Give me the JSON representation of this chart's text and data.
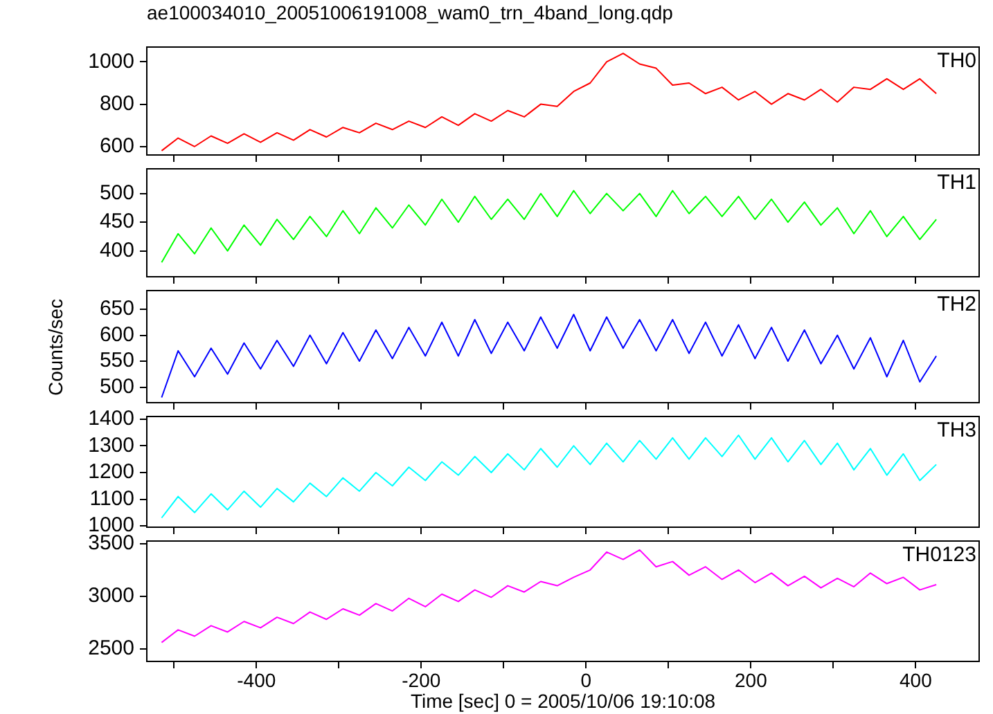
{
  "chart_data": [
    {
      "type": "line",
      "title": "ae100034010_20051006191008_wam0_trn_4band_long.qdp",
      "x": [
        -515,
        -495,
        -475,
        -455,
        -435,
        -415,
        -395,
        -375,
        -355,
        -335,
        -315,
        -295,
        -275,
        -255,
        -235,
        -215,
        -195,
        -175,
        -155,
        -135,
        -115,
        -95,
        -75,
        -55,
        -35,
        -15,
        5,
        25,
        45,
        65,
        85,
        105,
        125,
        145,
        165,
        185,
        205,
        225,
        245,
        265,
        285,
        305,
        325,
        345,
        365,
        385,
        405,
        425
      ],
      "xlim": [
        -533,
        477
      ],
      "xticks": [
        {
          "value": -500,
          "label": null
        },
        -400,
        {
          "value": -300,
          "label": null
        },
        -200,
        {
          "value": -100,
          "label": null
        },
        0,
        {
          "value": 100,
          "label": null
        },
        200,
        {
          "value": 300,
          "label": null
        },
        400
      ],
      "ylim": [
        560,
        1070
      ],
      "yticks": [
        600,
        800,
        1000
      ],
      "tick_labels": "y",
      "series": [
        {
          "name": "TH0",
          "color": "#ff0000",
          "values": [
            580,
            640,
            600,
            650,
            615,
            660,
            620,
            665,
            630,
            680,
            645,
            690,
            665,
            710,
            680,
            720,
            690,
            740,
            700,
            755,
            720,
            770,
            740,
            800,
            790,
            860,
            900,
            1000,
            1040,
            990,
            970,
            890,
            900,
            850,
            880,
            820,
            860,
            800,
            850,
            820,
            870,
            810,
            880,
            870,
            920,
            870,
            920,
            850
          ]
        }
      ]
    },
    {
      "type": "line",
      "x": [
        -515,
        -495,
        -475,
        -455,
        -435,
        -415,
        -395,
        -375,
        -355,
        -335,
        -315,
        -295,
        -275,
        -255,
        -235,
        -215,
        -195,
        -175,
        -155,
        -135,
        -115,
        -95,
        -75,
        -55,
        -35,
        -15,
        5,
        25,
        45,
        65,
        85,
        105,
        125,
        145,
        165,
        185,
        205,
        225,
        245,
        265,
        285,
        305,
        325,
        345,
        365,
        385,
        405,
        425
      ],
      "xlim": [
        -533,
        477
      ],
      "xticks": [
        {
          "value": -500,
          "label": null
        },
        -400,
        {
          "value": -300,
          "label": null
        },
        -200,
        {
          "value": -100,
          "label": null
        },
        0,
        {
          "value": 100,
          "label": null
        },
        200,
        {
          "value": 300,
          "label": null
        },
        400
      ],
      "ylim": [
        355,
        543
      ],
      "yticks": [
        400,
        450,
        500
      ],
      "tick_labels": "y",
      "series": [
        {
          "name": "TH1",
          "color": "#00ff00",
          "values": [
            380,
            430,
            395,
            440,
            400,
            445,
            410,
            455,
            420,
            460,
            425,
            470,
            430,
            475,
            440,
            480,
            445,
            490,
            450,
            495,
            455,
            490,
            455,
            500,
            460,
            505,
            465,
            500,
            470,
            500,
            460,
            505,
            465,
            495,
            460,
            495,
            455,
            490,
            450,
            485,
            445,
            475,
            430,
            470,
            425,
            460,
            420,
            455
          ]
        }
      ]
    },
    {
      "type": "line",
      "ylabel": "Counts/sec",
      "x": [
        -515,
        -495,
        -475,
        -455,
        -435,
        -415,
        -395,
        -375,
        -355,
        -335,
        -315,
        -295,
        -275,
        -255,
        -235,
        -215,
        -195,
        -175,
        -155,
        -135,
        -115,
        -95,
        -75,
        -55,
        -35,
        -15,
        5,
        25,
        45,
        65,
        85,
        105,
        125,
        145,
        165,
        185,
        205,
        225,
        245,
        265,
        285,
        305,
        325,
        345,
        365,
        385,
        405,
        425
      ],
      "xlim": [
        -533,
        477
      ],
      "xticks": [
        {
          "value": -500,
          "label": null
        },
        -400,
        {
          "value": -300,
          "label": null
        },
        -200,
        {
          "value": -100,
          "label": null
        },
        0,
        {
          "value": 100,
          "label": null
        },
        200,
        {
          "value": 300,
          "label": null
        },
        400
      ],
      "ylim": [
        470,
        686
      ],
      "yticks": [
        500,
        550,
        600,
        650
      ],
      "tick_labels": "y",
      "series": [
        {
          "name": "TH2",
          "color": "#0000ff",
          "values": [
            480,
            570,
            520,
            575,
            525,
            585,
            535,
            590,
            540,
            600,
            545,
            605,
            550,
            610,
            555,
            615,
            560,
            625,
            560,
            630,
            565,
            625,
            570,
            635,
            575,
            640,
            570,
            635,
            575,
            630,
            570,
            630,
            565,
            625,
            560,
            620,
            555,
            615,
            550,
            610,
            545,
            600,
            535,
            595,
            520,
            590,
            510,
            560
          ]
        }
      ]
    },
    {
      "type": "line",
      "x": [
        -515,
        -495,
        -475,
        -455,
        -435,
        -415,
        -395,
        -375,
        -355,
        -335,
        -315,
        -295,
        -275,
        -255,
        -235,
        -215,
        -195,
        -175,
        -155,
        -135,
        -115,
        -95,
        -75,
        -55,
        -35,
        -15,
        5,
        25,
        45,
        65,
        85,
        105,
        125,
        145,
        165,
        185,
        205,
        225,
        245,
        265,
        285,
        305,
        325,
        345,
        365,
        385,
        405,
        425
      ],
      "xlim": [
        -533,
        477
      ],
      "xticks": [
        {
          "value": -500,
          "label": null
        },
        -400,
        {
          "value": -300,
          "label": null
        },
        -200,
        {
          "value": -100,
          "label": null
        },
        0,
        {
          "value": 100,
          "label": null
        },
        200,
        {
          "value": 300,
          "label": null
        },
        400
      ],
      "ylim": [
        995,
        1410
      ],
      "yticks": [
        1000,
        1100,
        1200,
        1300,
        1400
      ],
      "tick_labels": "y",
      "series": [
        {
          "name": "TH3",
          "color": "#00ffff",
          "values": [
            1030,
            1110,
            1050,
            1120,
            1060,
            1130,
            1070,
            1140,
            1090,
            1160,
            1110,
            1180,
            1130,
            1200,
            1150,
            1220,
            1170,
            1240,
            1190,
            1260,
            1200,
            1270,
            1210,
            1290,
            1220,
            1300,
            1230,
            1310,
            1240,
            1320,
            1250,
            1330,
            1250,
            1330,
            1260,
            1340,
            1250,
            1330,
            1240,
            1320,
            1230,
            1310,
            1210,
            1290,
            1190,
            1270,
            1170,
            1230
          ]
        }
      ]
    },
    {
      "type": "line",
      "xlabel": "Time [sec] 0 = 2005/10/06 19:10:08",
      "x": [
        -515,
        -495,
        -475,
        -455,
        -435,
        -415,
        -395,
        -375,
        -355,
        -335,
        -315,
        -295,
        -275,
        -255,
        -235,
        -215,
        -195,
        -175,
        -155,
        -135,
        -115,
        -95,
        -75,
        -55,
        -35,
        -15,
        5,
        25,
        45,
        65,
        85,
        105,
        125,
        145,
        165,
        185,
        205,
        225,
        245,
        265,
        285,
        305,
        325,
        345,
        365,
        385,
        405,
        425
      ],
      "xlim": [
        -533,
        477
      ],
      "xticks": [
        {
          "value": -500,
          "label": null
        },
        -400,
        {
          "value": -300,
          "label": null
        },
        -200,
        {
          "value": -100,
          "label": null
        },
        0,
        {
          "value": 100,
          "label": null
        },
        200,
        {
          "value": 300,
          "label": null
        },
        400
      ],
      "ylim": [
        2380,
        3525
      ],
      "yticks": [
        2500,
        3000,
        3500
      ],
      "series": [
        {
          "name": "TH0123",
          "color": "#ff00ff",
          "values": [
            2560,
            2680,
            2620,
            2720,
            2660,
            2760,
            2700,
            2800,
            2740,
            2850,
            2780,
            2880,
            2820,
            2930,
            2860,
            2980,
            2900,
            3020,
            2950,
            3060,
            2990,
            3100,
            3040,
            3140,
            3100,
            3180,
            3250,
            3420,
            3350,
            3440,
            3280,
            3330,
            3200,
            3280,
            3160,
            3250,
            3130,
            3220,
            3100,
            3190,
            3080,
            3170,
            3090,
            3220,
            3120,
            3180,
            3060,
            3110
          ]
        }
      ]
    }
  ]
}
